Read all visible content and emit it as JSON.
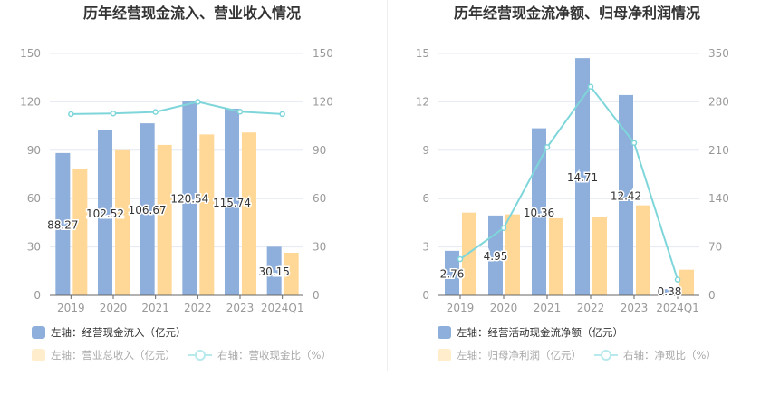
{
  "colors": {
    "bar1": "#8eaedb",
    "bar2": "#ffd897",
    "line": "#7fd6da",
    "grid": "#e3e8f2",
    "axis": "#999",
    "title": "#333",
    "legend_dim_bar2": "#ffedcc",
    "legend_dim_line": "#b8e9ec"
  },
  "chart_data": [
    {
      "type": "bar+line",
      "title": "历年经营现金流入、营业收入情况",
      "categories": [
        "2019",
        "2020",
        "2021",
        "2022",
        "2023",
        "2024Q1"
      ],
      "left_axis": {
        "ylim": [
          0,
          150
        ],
        "ticks": [
          "0",
          "30",
          "60",
          "90",
          "120",
          "150"
        ]
      },
      "right_axis": {
        "ylim": [
          0,
          150
        ],
        "ticks": [
          "0",
          "30",
          "60",
          "90",
          "120",
          "150"
        ]
      },
      "grid": true,
      "legend_placement": "bottom-left",
      "series": [
        {
          "name": "左轴：经营现金流入（亿元）",
          "type": "bar",
          "axis": "left",
          "values": [
            88.27,
            102.52,
            106.67,
            120.54,
            115.74,
            30.15
          ],
          "labels": [
            "88.27",
            "102.52",
            "106.67",
            "120.54",
            "115.74",
            "30.15"
          ]
        },
        {
          "name": "左轴：营业总收入（亿元）",
          "type": "bar",
          "axis": "left",
          "values": [
            78.1,
            90.0,
            93.3,
            99.8,
            101.0,
            26.4
          ]
        },
        {
          "name": "右轴：营收现金比（%）",
          "type": "line",
          "axis": "right",
          "values": [
            112.4,
            112.8,
            113.7,
            120.0,
            113.9,
            112.4
          ]
        }
      ]
    },
    {
      "type": "bar+line",
      "title": "历年经营现金流净额、归母净利润情况",
      "categories": [
        "2019",
        "2020",
        "2021",
        "2022",
        "2023",
        "2024Q1"
      ],
      "left_axis": {
        "ylim": [
          0,
          15
        ],
        "ticks": [
          "0",
          "3",
          "6",
          "9",
          "12",
          "15"
        ]
      },
      "right_axis": {
        "ylim": [
          0,
          350
        ],
        "ticks": [
          "0",
          "70",
          "140",
          "210",
          "280",
          "350"
        ]
      },
      "grid": true,
      "legend_placement": "bottom-left",
      "series": [
        {
          "name": "左轴：经营活动现金流净额（亿元）",
          "type": "bar",
          "axis": "left",
          "values": [
            2.76,
            4.95,
            10.36,
            14.71,
            12.42,
            0.38
          ],
          "labels": [
            "2.76",
            "4.95",
            "10.36",
            "14.71",
            "12.42",
            "0.38"
          ]
        },
        {
          "name": "左轴：归母净利润（亿元）",
          "type": "bar",
          "axis": "left",
          "values": [
            5.13,
            5.02,
            4.78,
            4.83,
            5.58,
            1.59
          ]
        },
        {
          "name": "右轴：净现比（%）",
          "type": "line",
          "axis": "right",
          "values": [
            52.4,
            97.4,
            214.5,
            301.9,
            220.6,
            22.7
          ]
        }
      ]
    }
  ]
}
